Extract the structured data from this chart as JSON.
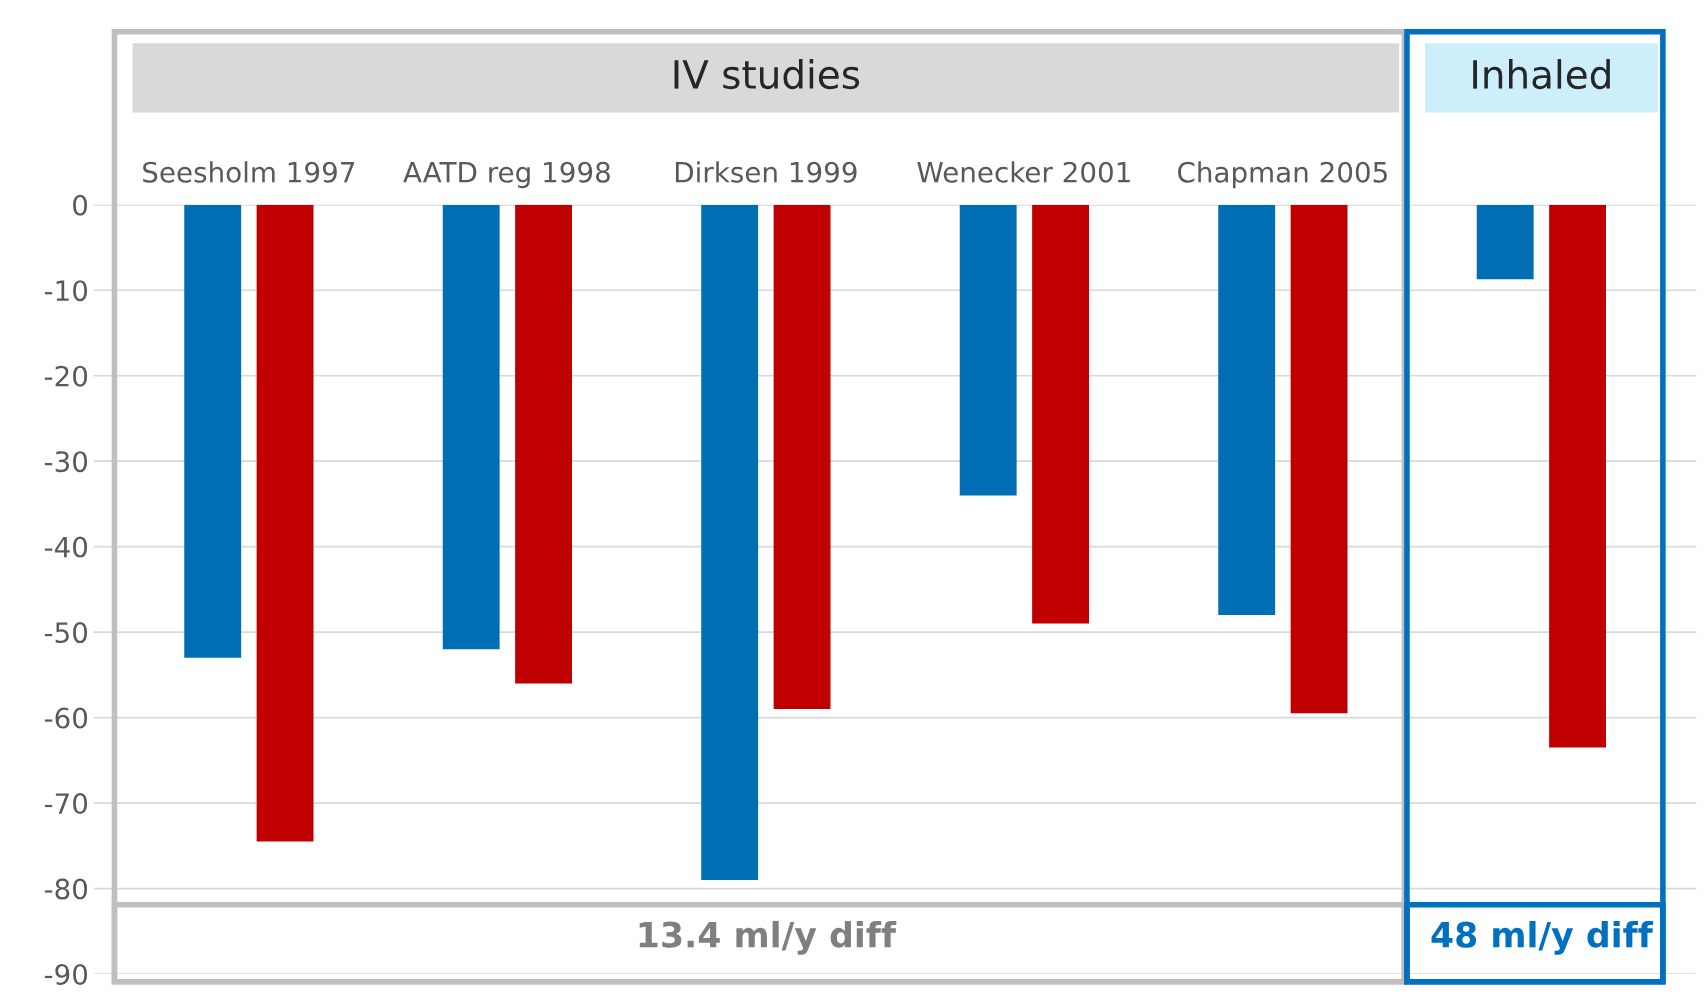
{
  "chart_data": {
    "type": "bar",
    "categories": [
      "Seesholm 1997",
      "AATD reg 1998",
      "Dirksen 1999",
      "Wenecker 2001",
      "Chapman 2005",
      null
    ],
    "series": [
      {
        "color": "#006eb3",
        "values": [
          -53,
          -52,
          -79,
          -34,
          -48,
          -8.7
        ]
      },
      {
        "color": "#c00000",
        "values": [
          -74.5,
          -56,
          -59,
          -49,
          -59.5,
          -63.5
        ]
      }
    ],
    "ylim": [
      -90,
      0
    ],
    "yticks": [
      0,
      -10,
      -20,
      -30,
      -40,
      -50,
      -60,
      -70,
      -80,
      -90
    ],
    "grid": "y",
    "annotations": [
      "IV studies",
      "Inhaled",
      "13.4 ml/y diff",
      "48 ml/y diff"
    ]
  }
}
